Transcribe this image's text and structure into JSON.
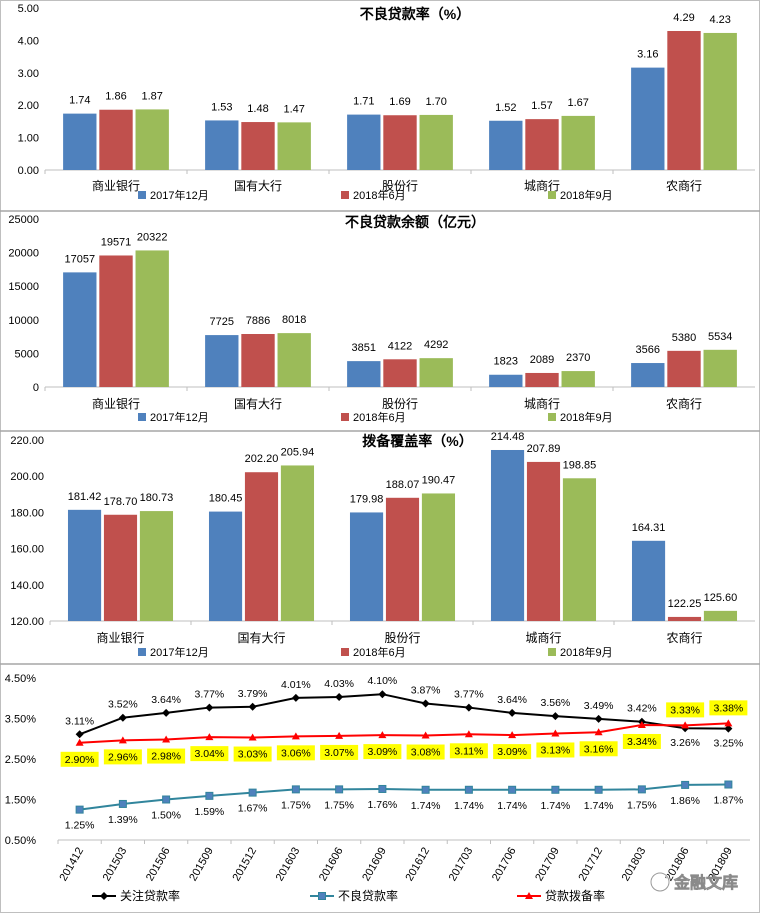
{
  "colors": {
    "series_2017_12": "#4F81BD",
    "series_2018_6": "#C0504D",
    "series_2018_9": "#9BBB59",
    "attention_rate": "#000000",
    "npl_rate": "#31859C",
    "provision_rate": "#FF0000",
    "highlight": "#FFFF00"
  },
  "watermark": {
    "icon": "wechat-icon",
    "text": "金融文库"
  },
  "chart_data": [
    {
      "type": "bar",
      "title": "不良贷款率（%）",
      "categories": [
        "商业银行",
        "国有大行",
        "股份行",
        "城商行",
        "农商行"
      ],
      "ylim": [
        0,
        5
      ],
      "yticks": [
        "0.00",
        "1.00",
        "2.00",
        "3.00",
        "4.00",
        "5.00"
      ],
      "ytick_values": [
        0,
        1,
        2,
        3,
        4,
        5
      ],
      "grid": false,
      "legend_position": "bottom",
      "series": [
        {
          "name": "2017年12月",
          "values": [
            1.74,
            1.53,
            1.71,
            1.52,
            3.16
          ],
          "labels": [
            "1.74",
            "1.53",
            "1.71",
            "1.52",
            "3.16"
          ]
        },
        {
          "name": "2018年6月",
          "values": [
            1.86,
            1.48,
            1.69,
            1.57,
            4.29
          ],
          "labels": [
            "1.86",
            "1.48",
            "1.69",
            "1.57",
            "4.29"
          ]
        },
        {
          "name": "2018年9月",
          "values": [
            1.87,
            1.47,
            1.7,
            1.67,
            4.23
          ],
          "labels": [
            "1.87",
            "1.47",
            "1.70",
            "1.67",
            "4.23"
          ]
        }
      ]
    },
    {
      "type": "bar",
      "title": "不良贷款余额（亿元）",
      "categories": [
        "商业银行",
        "国有大行",
        "股份行",
        "城商行",
        "农商行"
      ],
      "ylim": [
        0,
        25000
      ],
      "yticks": [
        "0",
        "5000",
        "10000",
        "15000",
        "20000",
        "25000"
      ],
      "ytick_values": [
        0,
        5000,
        10000,
        15000,
        20000,
        25000
      ],
      "grid": false,
      "legend_position": "bottom",
      "series": [
        {
          "name": "2017年12月",
          "values": [
            17057,
            7725,
            3851,
            1823,
            3566
          ],
          "labels": [
            "17057",
            "7725",
            "3851",
            "1823",
            "3566"
          ]
        },
        {
          "name": "2018年6月",
          "values": [
            19571,
            7886,
            4122,
            2089,
            5380
          ],
          "labels": [
            "19571",
            "7886",
            "4122",
            "2089",
            "5380"
          ]
        },
        {
          "name": "2018年9月",
          "values": [
            20322,
            8018,
            4292,
            2370,
            5534
          ],
          "labels": [
            "20322",
            "8018",
            "4292",
            "2370",
            "5534"
          ]
        }
      ]
    },
    {
      "type": "bar",
      "title": "拨备覆盖率（%）",
      "categories": [
        "商业银行",
        "国有大行",
        "股份行",
        "城商行",
        "农商行"
      ],
      "ylim": [
        120,
        220
      ],
      "yticks": [
        "120.00",
        "140.00",
        "160.00",
        "180.00",
        "200.00",
        "220.00"
      ],
      "ytick_values": [
        120,
        140,
        160,
        180,
        200,
        220
      ],
      "grid": false,
      "legend_position": "bottom",
      "series": [
        {
          "name": "2017年12月",
          "values": [
            181.42,
            180.45,
            179.98,
            214.48,
            164.31
          ],
          "labels": [
            "181.42",
            "180.45",
            "179.98",
            "214.48",
            "164.31"
          ]
        },
        {
          "name": "2018年6月",
          "values": [
            178.7,
            202.2,
            188.07,
            207.89,
            122.25
          ],
          "labels": [
            "178.70",
            "202.20",
            "188.07",
            "207.89",
            "122.25"
          ]
        },
        {
          "name": "2018年9月",
          "values": [
            180.73,
            205.94,
            190.47,
            198.85,
            125.6
          ],
          "labels": [
            "180.73",
            "205.94",
            "190.47",
            "198.85",
            "125.60"
          ]
        }
      ]
    },
    {
      "type": "line",
      "title": "",
      "x": [
        "201412",
        "201503",
        "201506",
        "201509",
        "201512",
        "201603",
        "201606",
        "201609",
        "201612",
        "201703",
        "201706",
        "201709",
        "201712",
        "201803",
        "201806",
        "201809"
      ],
      "ylim": [
        0.5,
        4.5
      ],
      "yticks": [
        "0.50%",
        "1.50%",
        "2.50%",
        "3.50%",
        "4.50%"
      ],
      "ytick_values": [
        0.5,
        1.5,
        2.5,
        3.5,
        4.5
      ],
      "grid": false,
      "legend_position": "bottom",
      "series": [
        {
          "name": "关注贷款率",
          "values": [
            3.11,
            3.52,
            3.64,
            3.77,
            3.79,
            4.01,
            4.03,
            4.1,
            3.87,
            3.77,
            3.64,
            3.56,
            3.49,
            3.42,
            3.26,
            3.25
          ],
          "labels": [
            "3.11%",
            "3.52%",
            "3.64%",
            "3.77%",
            "3.79%",
            "4.01%",
            "4.03%",
            "4.10%",
            "3.87%",
            "3.77%",
            "3.64%",
            "3.56%",
            "3.49%",
            "3.42%",
            "3.26%",
            "3.25%"
          ]
        },
        {
          "name": "不良贷款率",
          "values": [
            1.25,
            1.39,
            1.5,
            1.59,
            1.67,
            1.75,
            1.75,
            1.76,
            1.74,
            1.74,
            1.74,
            1.74,
            1.74,
            1.75,
            1.86,
            1.87
          ],
          "labels": [
            "1.25%",
            "1.39%",
            "1.50%",
            "1.59%",
            "1.67%",
            "1.75%",
            "1.75%",
            "1.76%",
            "1.74%",
            "1.74%",
            "1.74%",
            "1.74%",
            "1.74%",
            "1.75%",
            "1.86%",
            "1.87%"
          ]
        },
        {
          "name": "贷款拨备率",
          "values": [
            2.9,
            2.96,
            2.98,
            3.04,
            3.03,
            3.06,
            3.07,
            3.09,
            3.08,
            3.11,
            3.09,
            3.13,
            3.16,
            3.34,
            3.33,
            3.38
          ],
          "labels": [
            "2.90%",
            "2.96%",
            "2.98%",
            "3.04%",
            "3.03%",
            "3.06%",
            "3.07%",
            "3.09%",
            "3.08%",
            "3.11%",
            "3.09%",
            "3.13%",
            "3.16%",
            "3.34%",
            "3.33%",
            "3.38%"
          ]
        }
      ]
    }
  ]
}
